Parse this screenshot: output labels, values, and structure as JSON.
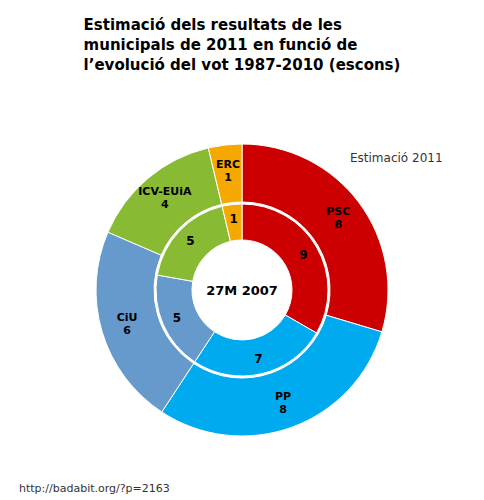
{
  "chart_data": {
    "type": "pie",
    "title": "Estimació dels resultats de les\nmunicipals de 2011 en funció de\nl’evolució del vot 1987-2010 (escons)",
    "categories": [
      "PSC",
      "PP",
      "CiU",
      "ICV-EUiA",
      "ERC"
    ],
    "series": [
      {
        "name": "Estimació 2011",
        "values": [
          8,
          8,
          6,
          4,
          1
        ]
      },
      {
        "name": "27M 2007",
        "values": [
          9,
          7,
          5,
          5,
          1
        ]
      }
    ],
    "colors": [
      "#cc0000",
      "#00aaee",
      "#6699cc",
      "#88bb33",
      "#f5a800"
    ],
    "data_labels": true,
    "annotations": [
      "http://badabit.org/?p=2163"
    ]
  }
}
